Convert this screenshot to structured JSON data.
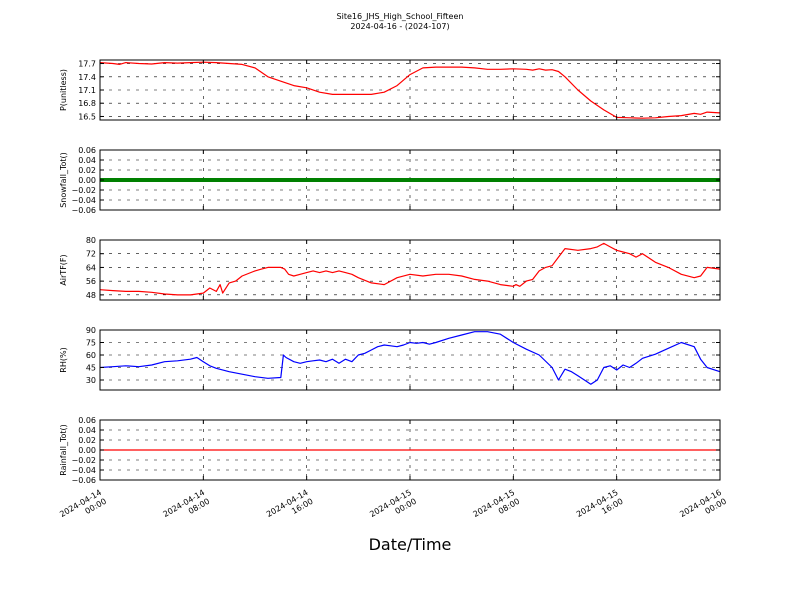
{
  "figure": {
    "title_line1": "Site16_JHS_High_School_Fifteen",
    "title_line2": "2024-04-16 - (2024-107)",
    "xlabel": "Date/Time"
  },
  "x_axis": {
    "range_hours": [
      0,
      48
    ],
    "ticks": [
      {
        "hours": 0,
        "line1": "2024-04-14",
        "line2": "00:00"
      },
      {
        "hours": 8,
        "line1": "2024-04-14",
        "line2": "08:00"
      },
      {
        "hours": 16,
        "line1": "2024-04-14",
        "line2": "16:00"
      },
      {
        "hours": 24,
        "line1": "2024-04-15",
        "line2": "00:00"
      },
      {
        "hours": 32,
        "line1": "2024-04-15",
        "line2": "08:00"
      },
      {
        "hours": 40,
        "line1": "2024-04-15",
        "line2": "16:00"
      },
      {
        "hours": 48,
        "line1": "2024-04-16",
        "line2": "00:00"
      }
    ]
  },
  "chart_data": [
    {
      "type": "line",
      "ylabel": "P(unitless)",
      "ylim": [
        16.42,
        17.78
      ],
      "yticks": [
        "16.5",
        "16.8",
        "17.1",
        "17.4",
        "17.7"
      ],
      "yticks_values": [
        16.5,
        16.8,
        17.1,
        17.4,
        17.7
      ],
      "grid": true,
      "series": [
        {
          "color": "#ff0000",
          "x": [
            0,
            1,
            1.5,
            2,
            3,
            4,
            5,
            6,
            7,
            8,
            9,
            10,
            11,
            12,
            13,
            14,
            15,
            16,
            17,
            18,
            19,
            20,
            21,
            22,
            23,
            24,
            25,
            26,
            27,
            28,
            29,
            30,
            31,
            32,
            33,
            33.5,
            34,
            34.5,
            35,
            35.5,
            36,
            37,
            38,
            39,
            40,
            41,
            42,
            43,
            44,
            45,
            46,
            46.5,
            47,
            48
          ],
          "y": [
            17.72,
            17.7,
            17.68,
            17.72,
            17.7,
            17.69,
            17.72,
            17.71,
            17.72,
            17.73,
            17.72,
            17.7,
            17.68,
            17.6,
            17.4,
            17.3,
            17.2,
            17.15,
            17.05,
            17.0,
            17.0,
            17.0,
            17.0,
            17.05,
            17.2,
            17.45,
            17.6,
            17.62,
            17.62,
            17.62,
            17.6,
            17.57,
            17.57,
            17.58,
            17.57,
            17.55,
            17.58,
            17.55,
            17.56,
            17.52,
            17.4,
            17.1,
            16.85,
            16.65,
            16.48,
            16.47,
            16.46,
            16.47,
            16.5,
            16.52,
            16.57,
            16.55,
            16.6,
            16.58
          ]
        }
      ]
    },
    {
      "type": "line",
      "ylabel": "Snowfall_Tot()",
      "ylim": [
        -0.06,
        0.06
      ],
      "yticks": [
        "−0.06",
        "−0.04",
        "−0.02",
        "0.00",
        "0.02",
        "0.04",
        "0.06"
      ],
      "yticks_values": [
        -0.06,
        -0.04,
        -0.02,
        0,
        0.02,
        0.04,
        0.06
      ],
      "grid": true,
      "series": [
        {
          "color": "#008000",
          "x": [
            0,
            48
          ],
          "y": [
            0,
            0
          ]
        }
      ]
    },
    {
      "type": "line",
      "ylabel": "AirTF(F)",
      "ylim": [
        45,
        80
      ],
      "yticks": [
        "48",
        "56",
        "64",
        "72",
        "80"
      ],
      "yticks_values": [
        48,
        56,
        64,
        72,
        80
      ],
      "grid": true,
      "series": [
        {
          "color": "#ff0000",
          "x": [
            0,
            1,
            2,
            3,
            4,
            5,
            6,
            7,
            8,
            8.5,
            9,
            9.3,
            9.5,
            10,
            10.5,
            11,
            12,
            12.5,
            13,
            14,
            14.3,
            14.6,
            15,
            15.5,
            16,
            16.5,
            17,
            17.5,
            18,
            18.5,
            19,
            19.5,
            20,
            21,
            22,
            23,
            24,
            25,
            26,
            27,
            28,
            29,
            30,
            31,
            32,
            32.2,
            32.5,
            33,
            33.5,
            34,
            34.5,
            35,
            35.5,
            36,
            37,
            38,
            38.5,
            39,
            39.5,
            40,
            40.5,
            41,
            41.5,
            42,
            43,
            44,
            45,
            46,
            46.5,
            47,
            48
          ],
          "y": [
            51,
            50.5,
            50,
            50,
            49.5,
            48.5,
            48,
            48,
            49,
            52,
            50,
            54,
            49,
            55,
            56,
            59,
            62,
            63,
            64,
            64,
            63,
            60,
            59,
            60,
            61,
            62,
            61,
            62,
            61,
            62,
            61,
            60,
            58,
            55,
            54,
            58,
            60,
            59,
            60,
            60,
            59,
            57,
            56,
            54,
            53,
            54,
            53,
            56,
            57,
            62,
            64,
            65,
            70,
            75,
            74,
            75,
            76,
            78,
            76,
            74,
            73,
            72,
            70,
            72,
            67,
            64,
            60,
            58,
            59,
            64,
            63
          ]
        }
      ]
    },
    {
      "type": "line",
      "ylabel": "RH(%)",
      "ylim": [
        18,
        90
      ],
      "yticks": [
        "30",
        "45",
        "60",
        "75",
        "90"
      ],
      "yticks_values": [
        30,
        45,
        60,
        75,
        90
      ],
      "grid": true,
      "series": [
        {
          "color": "#0000ff",
          "x": [
            0,
            1,
            2,
            3,
            4,
            5,
            6,
            7,
            7.5,
            8,
            8.5,
            9,
            10,
            11,
            12,
            13,
            14,
            14.2,
            14.4,
            15,
            15.5,
            16,
            16.5,
            17,
            17.5,
            18,
            18.5,
            19,
            19.5,
            20,
            20.5,
            21,
            21.5,
            22,
            22.5,
            23,
            23.5,
            24,
            24.5,
            25,
            25.5,
            26,
            27,
            28,
            29,
            30,
            31,
            32,
            33,
            34,
            35,
            35.5,
            36,
            36.5,
            37,
            37.5,
            38,
            38.5,
            39,
            39.5,
            40,
            40.5,
            41,
            41.5,
            42,
            43,
            44,
            45,
            46,
            46.5,
            47,
            48
          ],
          "y": [
            45,
            46,
            47,
            46,
            48,
            52,
            53,
            55,
            57,
            52,
            47,
            44,
            40,
            37,
            34,
            32,
            33,
            60,
            57,
            52,
            50,
            52,
            53,
            54,
            52,
            55,
            50,
            55,
            52,
            60,
            62,
            66,
            70,
            72,
            71,
            70,
            72,
            75,
            74,
            75,
            73,
            75,
            80,
            84,
            88,
            88,
            85,
            75,
            67,
            60,
            45,
            30,
            43,
            40,
            35,
            30,
            25,
            30,
            45,
            47,
            42,
            48,
            45,
            50,
            56,
            61,
            68,
            75,
            70,
            55,
            45,
            40
          ]
        }
      ]
    },
    {
      "type": "line",
      "ylabel": "Rainfall_Tot()",
      "ylim": [
        -0.06,
        0.06
      ],
      "yticks": [
        "−0.06",
        "−0.04",
        "−0.02",
        "0.00",
        "0.02",
        "0.04",
        "0.06"
      ],
      "yticks_values": [
        -0.06,
        -0.04,
        -0.02,
        0,
        0.02,
        0.04,
        0.06
      ],
      "grid": true,
      "series": [
        {
          "color": "#ff0000",
          "x": [
            0,
            48
          ],
          "y": [
            0,
            0
          ]
        }
      ]
    }
  ]
}
